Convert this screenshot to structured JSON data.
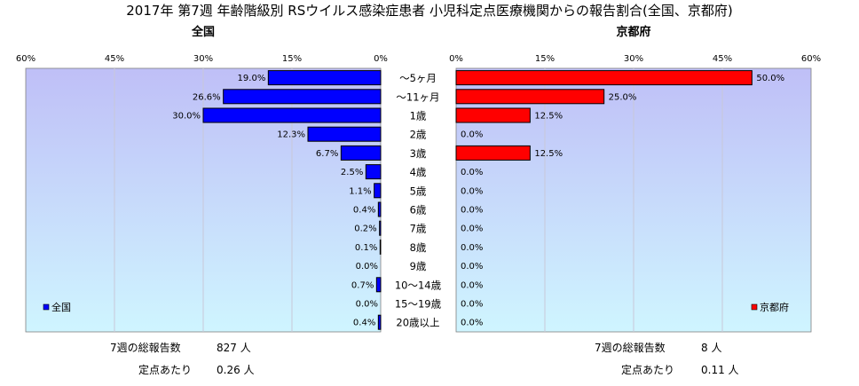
{
  "title": "2017年 第7週 年齢階級別 RSウイルス感染症患者 小児科定点医療機関からの報告割合(全国、京都府)",
  "categories": [
    "～5ヶ月",
    "～11ヶ月",
    "1歳",
    "2歳",
    "3歳",
    "4歳",
    "5歳",
    "6歳",
    "7歳",
    "8歳",
    "9歳",
    "10～14歳",
    "15～19歳",
    "20歳以上"
  ],
  "colors": {
    "national": "#0000ff",
    "kyoto": "#ff0000",
    "plot_bg_top": "#bfbff7",
    "plot_bg_bottom": "#cff5ff",
    "grid": "#c8c8d8"
  },
  "chart_data": [
    {
      "type": "bar",
      "orientation": "horizontal",
      "direction": "right-to-left",
      "title": "全国",
      "legend": "全国",
      "legend_position": "bottom-left",
      "categories": [
        "～5ヶ月",
        "～11ヶ月",
        "1歳",
        "2歳",
        "3歳",
        "4歳",
        "5歳",
        "6歳",
        "7歳",
        "8歳",
        "9歳",
        "10～14歳",
        "15～19歳",
        "20歳以上"
      ],
      "series": [
        {
          "name": "全国",
          "values": [
            19.0,
            26.6,
            30.0,
            12.3,
            6.7,
            2.5,
            1.1,
            0.4,
            0.2,
            0.1,
            0.0,
            0.7,
            0.0,
            0.4
          ]
        }
      ],
      "data_labels": [
        "19.0%",
        "26.6%",
        "30.0%",
        "12.3%",
        "6.7%",
        "2.5%",
        "1.1%",
        "0.4%",
        "0.2%",
        "0.1%",
        "0.0%",
        "0.7%",
        "0.0%",
        "0.4%"
      ],
      "xlim": [
        0,
        60
      ],
      "xticks": [
        60,
        45,
        30,
        15,
        0
      ],
      "xtick_labels": [
        "60%",
        "45%",
        "30%",
        "15%",
        "0%"
      ],
      "grid": true
    },
    {
      "type": "bar",
      "orientation": "horizontal",
      "direction": "left-to-right",
      "title": "京都府",
      "legend": "京都府",
      "legend_position": "bottom-right",
      "categories": [
        "～5ヶ月",
        "～11ヶ月",
        "1歳",
        "2歳",
        "3歳",
        "4歳",
        "5歳",
        "6歳",
        "7歳",
        "8歳",
        "9歳",
        "10～14歳",
        "15～19歳",
        "20歳以上"
      ],
      "series": [
        {
          "name": "京都府",
          "values": [
            50.0,
            25.0,
            12.5,
            0.0,
            12.5,
            0.0,
            0.0,
            0.0,
            0.0,
            0.0,
            0.0,
            0.0,
            0.0,
            0.0
          ]
        }
      ],
      "data_labels": [
        "50.0%",
        "25.0%",
        "12.5%",
        "0.0%",
        "12.5%",
        "0.0%",
        "0.0%",
        "0.0%",
        "0.0%",
        "0.0%",
        "0.0%",
        "0.0%",
        "0.0%",
        "0.0%"
      ],
      "xlim": [
        0,
        60
      ],
      "xticks": [
        0,
        15,
        30,
        45,
        60
      ],
      "xtick_labels": [
        "0%",
        "15%",
        "30%",
        "45%",
        "60%"
      ],
      "grid": true
    }
  ],
  "footer": {
    "left": {
      "total_label": "7週の総報告数",
      "total_value": "827 人",
      "per_label": "定点あたり",
      "per_value": "0.26 人"
    },
    "right": {
      "total_label": "7週の総報告数",
      "total_value": "8 人",
      "per_label": "定点あたり",
      "per_value": "0.11 人"
    }
  }
}
